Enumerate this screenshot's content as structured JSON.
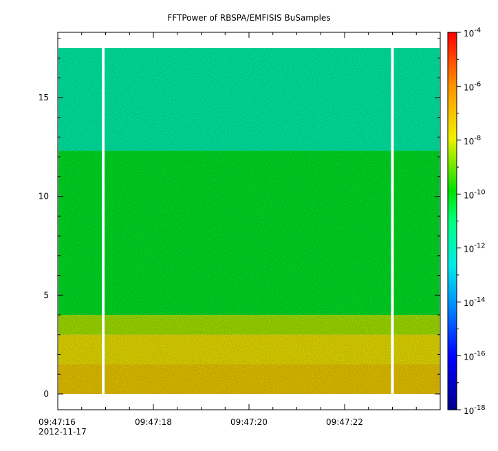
{
  "chart_data": {
    "type": "heatmap",
    "title": "FFTPower of RBSPA/EMFISIS  BuSamples",
    "xlabel": "",
    "ylabel": "",
    "x_ticks": [
      {
        "t": 16,
        "label": "09:47:16",
        "sublabel": "2012-11-17"
      },
      {
        "t": 18,
        "label": "09:47:18"
      },
      {
        "t": 20,
        "label": "09:47:20"
      },
      {
        "t": 22,
        "label": "09:47:22"
      }
    ],
    "x_range_seconds": [
      16,
      24
    ],
    "y_ticks": [
      0,
      5,
      10,
      15
    ],
    "ylim": [
      -0.8,
      18.3
    ],
    "data_frequency_range": [
      0,
      17.5
    ],
    "data_gaps_seconds": [
      16.95,
      23.0
    ],
    "colorbar": {
      "scale": "log",
      "range_exponent": [
        -18,
        -4
      ],
      "tick_exponents": [
        -18,
        -16,
        -14,
        -12,
        -10,
        -8,
        -6,
        -4
      ]
    },
    "bands": [
      {
        "y_from": 0.0,
        "y_to": 1.5,
        "log10_power": -7.3
      },
      {
        "y_from": 1.5,
        "y_to": 3.0,
        "log10_power": -7.8
      },
      {
        "y_from": 3.0,
        "y_to": 4.0,
        "log10_power": -8.6
      },
      {
        "y_from": 4.0,
        "y_to": 12.3,
        "log10_power": -10.3
      },
      {
        "y_from": 12.3,
        "y_to": 17.5,
        "log10_power": -11.7
      }
    ]
  }
}
